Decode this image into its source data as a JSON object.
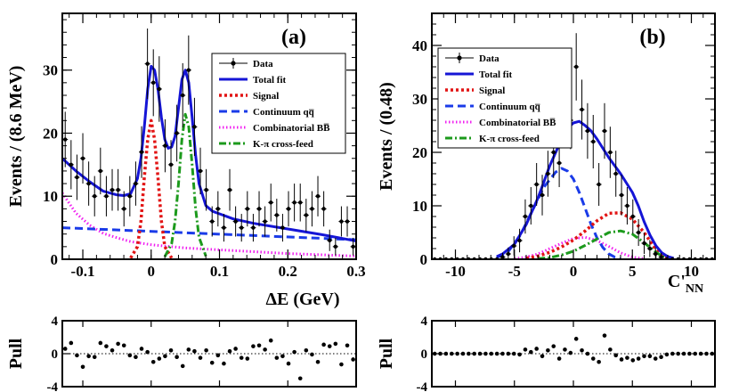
{
  "chart_data": [
    {
      "panel": "(a)",
      "type": "line",
      "xlabel": "ΔE (GeV)",
      "ylabel": "Events / (8.6 MeV)",
      "xlim": [
        -0.13,
        0.3
      ],
      "ylim": [
        0,
        39
      ],
      "xticks": [
        -0.1,
        0,
        0.1,
        0.2,
        0.3
      ],
      "xtick_labels": [
        "-0.1",
        "0",
        "0.1",
        "0.2",
        "0.3"
      ],
      "yticks": [
        0,
        10,
        20,
        30
      ],
      "ytick_labels": [
        "0",
        "10",
        "20",
        "30"
      ],
      "legend_position": "top-right",
      "legend": [
        {
          "label": "Data",
          "style": "marker"
        },
        {
          "label": "Total fit",
          "style": "solid",
          "color": "#1515d6"
        },
        {
          "label": "Signal",
          "style": "dotted",
          "color": "#e21414"
        },
        {
          "label": "Continuum qq̅",
          "style": "dashed",
          "color": "#1a3be8"
        },
        {
          "label": "Combinatorial BB̅",
          "style": "dotted-fine",
          "color": "#f020f0"
        },
        {
          "label": "K-π cross-feed",
          "style": "dash-dot",
          "color": "#1c9a1c"
        }
      ],
      "data": {
        "x": [
          -0.1258,
          -0.1172,
          -0.1086,
          -0.1,
          -0.0914,
          -0.0828,
          -0.0742,
          -0.0656,
          -0.057,
          -0.0484,
          -0.0398,
          -0.0312,
          -0.0226,
          -0.014,
          -0.0054,
          0.0032,
          0.0118,
          0.0204,
          0.029,
          0.0376,
          0.0462,
          0.0548,
          0.0634,
          0.072,
          0.0806,
          0.0892,
          0.0978,
          0.1064,
          0.115,
          0.1236,
          0.1322,
          0.1408,
          0.1494,
          0.158,
          0.1666,
          0.1752,
          0.1838,
          0.1924,
          0.201,
          0.2096,
          0.2182,
          0.2268,
          0.2354,
          0.244,
          0.2526,
          0.2612,
          0.2698,
          0.2784,
          0.287,
          0.2956
        ],
        "y": [
          19,
          15,
          13,
          16,
          12,
          10,
          14,
          10,
          11,
          11,
          8,
          10,
          12,
          17,
          31,
          28,
          27,
          18,
          15,
          20,
          26,
          30,
          21,
          14,
          11,
          6,
          8,
          5,
          11,
          6,
          5,
          8,
          5,
          8,
          6,
          9,
          7,
          5,
          8,
          9,
          9,
          7,
          8,
          10,
          8,
          3,
          2,
          6,
          6,
          2
        ],
        "yerr": [
          4.4,
          3.9,
          3.6,
          4.0,
          3.5,
          3.2,
          3.7,
          3.2,
          3.3,
          3.3,
          2.8,
          3.2,
          3.5,
          4.1,
          5.6,
          5.3,
          5.2,
          4.2,
          3.9,
          4.5,
          5.1,
          5.5,
          4.6,
          3.7,
          3.3,
          2.4,
          2.8,
          2.2,
          3.3,
          2.4,
          2.2,
          2.8,
          2.2,
          2.8,
          2.4,
          3.0,
          2.6,
          2.2,
          2.8,
          3.0,
          3.0,
          2.6,
          2.8,
          3.2,
          2.8,
          1.7,
          1.4,
          2.4,
          2.4,
          1.4
        ]
      },
      "series": [
        {
          "name": "Total fit",
          "x": [
            -0.13,
            -0.11,
            -0.09,
            -0.07,
            -0.05,
            -0.04,
            -0.03,
            -0.02,
            -0.015,
            -0.01,
            -0.005,
            0,
            0.005,
            0.01,
            0.015,
            0.02,
            0.025,
            0.03,
            0.035,
            0.04,
            0.045,
            0.05,
            0.055,
            0.06,
            0.065,
            0.07,
            0.08,
            0.09,
            0.1,
            0.12,
            0.15,
            0.2,
            0.25,
            0.3
          ],
          "y": [
            16,
            14,
            12.3,
            10.8,
            10.2,
            10.1,
            10.4,
            12.8,
            16,
            21,
            27,
            30.6,
            30,
            27,
            22.5,
            19,
            17.6,
            17.8,
            19.5,
            24,
            28.5,
            30,
            28,
            22.5,
            16.5,
            12,
            8.5,
            7.6,
            7.2,
            6.4,
            5.7,
            4.8,
            3.9,
            2.9
          ]
        },
        {
          "name": "Signal",
          "x": [
            -0.03,
            -0.02,
            -0.015,
            -0.01,
            -0.005,
            0,
            0.005,
            0.01,
            0.015,
            0.02,
            0.03
          ],
          "y": [
            0.2,
            2,
            6,
            13,
            19,
            22,
            19,
            13,
            6,
            2,
            0.2
          ]
        },
        {
          "name": "Continuum qq̅",
          "x": [
            -0.13,
            0.3
          ],
          "y": [
            5.0,
            3.1
          ]
        },
        {
          "name": "Combinatorial BB̅",
          "x": [
            -0.13,
            -0.11,
            -0.09,
            -0.07,
            -0.05,
            -0.03,
            0,
            0.05,
            0.1,
            0.15,
            0.2,
            0.25,
            0.3
          ],
          "y": [
            10.5,
            7.3,
            5.4,
            4.1,
            3.4,
            2.8,
            2.3,
            1.8,
            1.5,
            1.2,
            0.9,
            0.7,
            0.5
          ]
        },
        {
          "name": "K-π cross-feed",
          "x": [
            0.02,
            0.03,
            0.035,
            0.04,
            0.045,
            0.05,
            0.055,
            0.06,
            0.065,
            0.07,
            0.08
          ],
          "y": [
            0.4,
            2.5,
            6,
            12,
            19,
            23,
            21,
            15,
            8,
            3.5,
            0.5
          ]
        }
      ],
      "pull": {
        "ylabel": "Pull",
        "ylim": [
          -4,
          4
        ],
        "yticks": [
          4,
          0,
          -4
        ],
        "ytick_labels": [
          "4",
          "0",
          "-4"
        ],
        "x": [
          -0.1258,
          -0.1172,
          -0.1086,
          -0.1,
          -0.0914,
          -0.0828,
          -0.0742,
          -0.0656,
          -0.057,
          -0.0484,
          -0.0398,
          -0.0312,
          -0.0226,
          -0.014,
          -0.0054,
          0.0032,
          0.0118,
          0.0204,
          0.029,
          0.0376,
          0.0462,
          0.0548,
          0.0634,
          0.072,
          0.0806,
          0.0892,
          0.0978,
          0.1064,
          0.115,
          0.1236,
          0.1322,
          0.1408,
          0.1494,
          0.158,
          0.1666,
          0.1752,
          0.1838,
          0.1924,
          0.201,
          0.2096,
          0.2182,
          0.2268,
          0.2354,
          0.244,
          0.2526,
          0.2612,
          0.2698,
          0.2784,
          0.287,
          0.2956
        ],
        "y": [
          0.6,
          1.3,
          -0.2,
          -1.6,
          -0.3,
          -0.4,
          1.3,
          0.9,
          0.4,
          1.2,
          1.0,
          -0.2,
          -0.4,
          0.6,
          0.2,
          -1.0,
          -0.6,
          -0.3,
          0.4,
          -0.4,
          -1.5,
          0.5,
          0.3,
          -0.5,
          0.4,
          -1.1,
          -0.2,
          -1.2,
          0.3,
          0.6,
          -0.5,
          -0.6,
          0.9,
          1.0,
          0.5,
          1.6,
          -0.5,
          -0.3,
          -1.2,
          0.2,
          -3.0,
          0.4,
          -0.1,
          -1.0,
          1.1,
          0.9,
          1.2,
          -1.3,
          1.0,
          -0.7
        ]
      }
    },
    {
      "panel": "(b)",
      "type": "line",
      "xlabel": "C'NN",
      "xlabel_main": "C'",
      "xlabel_sub": "NN",
      "ylabel": "Events / (0.48)",
      "xlim": [
        -12,
        12
      ],
      "ylim": [
        0,
        46
      ],
      "xticks": [
        -10,
        -5,
        0,
        5,
        10
      ],
      "xtick_labels": [
        "-10",
        "-5",
        "0",
        "5",
        "10"
      ],
      "yticks": [
        0,
        10,
        20,
        30,
        40
      ],
      "ytick_labels": [
        "0",
        "10",
        "20",
        "30",
        "40"
      ],
      "legend_position": "top-right",
      "legend": [
        {
          "label": "Data",
          "style": "marker"
        },
        {
          "label": "Total fit",
          "style": "solid",
          "color": "#1515d6"
        },
        {
          "label": "Signal",
          "style": "dotted",
          "color": "#e21414"
        },
        {
          "label": "Continuum qq̅",
          "style": "dashed",
          "color": "#1a3be8"
        },
        {
          "label": "Combinatorial BB̅",
          "style": "dotted-fine",
          "color": "#f020f0"
        },
        {
          "label": "K-π cross-feed",
          "style": "dash-dot",
          "color": "#1c9a1c"
        }
      ],
      "data": {
        "x": [
          -11.76,
          -11.28,
          -10.8,
          -10.32,
          -9.84,
          -9.36,
          -8.88,
          -8.4,
          -7.92,
          -7.44,
          -6.96,
          -6.48,
          -6.0,
          -5.52,
          -5.04,
          -4.56,
          -4.08,
          -3.6,
          -3.12,
          -2.64,
          -2.16,
          -1.68,
          -1.2,
          -0.72,
          -0.24,
          0.24,
          0.72,
          1.2,
          1.68,
          2.16,
          2.64,
          3.12,
          3.6,
          4.08,
          4.56,
          5.04,
          5.52,
          6.0,
          6.48,
          6.96,
          7.44,
          7.92,
          8.4,
          8.88,
          9.36,
          9.84,
          10.32,
          10.8,
          11.28,
          11.76
        ],
        "y": [
          0,
          0,
          0,
          0,
          0,
          0,
          0,
          0,
          0,
          0,
          0,
          0,
          0.4,
          1.0,
          2.5,
          3.5,
          8,
          10,
          14,
          12,
          16,
          20,
          18,
          30,
          26,
          36,
          28,
          24,
          22,
          14,
          24,
          20,
          16,
          12,
          10,
          8,
          5,
          3,
          2,
          1,
          0.4,
          0,
          0,
          0,
          0,
          0,
          0,
          0,
          0,
          0
        ],
        "yerr": [
          0,
          0,
          0,
          0,
          0,
          0,
          0,
          0,
          0,
          0,
          0,
          0,
          0.8,
          1.2,
          1.8,
          2.2,
          3.2,
          3.5,
          4.0,
          3.8,
          4.3,
          4.8,
          4.5,
          5.8,
          5.4,
          6.3,
          5.6,
          5.2,
          5.0,
          4.0,
          5.2,
          4.8,
          4.3,
          3.8,
          3.5,
          3.2,
          2.5,
          2.0,
          1.6,
          1.2,
          0.8,
          0,
          0,
          0,
          0,
          0,
          0,
          0,
          0,
          0
        ]
      },
      "series": [
        {
          "name": "Total fit",
          "x": [
            -6.5,
            -6,
            -5,
            -4,
            -3,
            -2,
            -1,
            -0.5,
            0,
            0.5,
            1,
            1.5,
            2,
            3,
            4,
            5,
            5.5,
            6,
            6.5,
            7,
            7.5,
            8,
            8.5
          ],
          "y": [
            0.5,
            1.0,
            2.8,
            6.5,
            11.5,
            17.5,
            22.5,
            24.5,
            25.5,
            25.8,
            25,
            24,
            22.5,
            19,
            16,
            12.5,
            10,
            7,
            4.5,
            2.5,
            1.2,
            0.5,
            0.2
          ]
        },
        {
          "name": "Signal",
          "x": [
            -4,
            -3,
            -2,
            -1,
            0,
            1,
            2,
            3,
            4,
            5,
            6,
            6.5,
            7,
            7.5,
            8
          ],
          "y": [
            0.2,
            0.6,
            1.3,
            2.3,
            3.6,
            5.3,
            7.2,
            8.6,
            8.7,
            7.5,
            5,
            3.4,
            1.8,
            0.8,
            0.3
          ]
        },
        {
          "name": "Continuum qq̅",
          "x": [
            -6.5,
            -5.5,
            -4.5,
            -3.5,
            -2.5,
            -1.5,
            -1,
            -0.5,
            0,
            0.5,
            1,
            1.5,
            2,
            2.5,
            3,
            3.5,
            4
          ],
          "y": [
            0.3,
            1.5,
            4.5,
            9,
            13.5,
            16.3,
            17,
            16.5,
            15,
            12.5,
            9.5,
            6.5,
            4,
            2.2,
            1.0,
            0.4,
            0.1
          ]
        },
        {
          "name": "Combinatorial BB̅",
          "x": [
            -5,
            -4,
            -3,
            -2,
            -1,
            0,
            1,
            2,
            3,
            4,
            5,
            6
          ],
          "y": [
            0.1,
            0.4,
            1.0,
            2.0,
            3.0,
            3.9,
            4.1,
            3.5,
            2.4,
            1.2,
            0.4,
            0.1
          ]
        },
        {
          "name": "K-π cross-feed",
          "x": [
            -3,
            -2,
            -1,
            0,
            1,
            2,
            3,
            4,
            5,
            6,
            7,
            7.5,
            8
          ],
          "y": [
            0.1,
            0.3,
            0.8,
            1.5,
            2.6,
            3.8,
            5.0,
            5.3,
            4.7,
            3.1,
            1.3,
            0.6,
            0.2
          ]
        }
      ],
      "pull": {
        "ylabel": "Pull",
        "ylim": [
          -4,
          4
        ],
        "yticks": [
          4,
          0,
          -4
        ],
        "ytick_labels": [
          "4",
          "0",
          "-4"
        ],
        "x": [
          -11.76,
          -11.28,
          -10.8,
          -10.32,
          -9.84,
          -9.36,
          -8.88,
          -8.4,
          -7.92,
          -7.44,
          -6.96,
          -6.48,
          -6.0,
          -5.52,
          -5.04,
          -4.56,
          -4.08,
          -3.6,
          -3.12,
          -2.64,
          -2.16,
          -1.68,
          -1.2,
          -0.72,
          -0.24,
          0.24,
          0.72,
          1.2,
          1.68,
          2.16,
          2.64,
          3.12,
          3.6,
          4.08,
          4.56,
          5.04,
          5.52,
          6.0,
          6.48,
          6.96,
          7.44,
          7.92,
          8.4,
          8.88,
          9.36,
          9.84,
          10.32,
          10.8,
          11.28,
          11.76
        ],
        "y": [
          0,
          0,
          0,
          0,
          0,
          0,
          0,
          0,
          0,
          0,
          0,
          0,
          0,
          0,
          0,
          -0.1,
          0.5,
          0.2,
          0.6,
          -0.3,
          0.4,
          0.9,
          -0.6,
          0.5,
          0.1,
          1.8,
          0.4,
          0.0,
          -0.6,
          -1.0,
          2.2,
          0.5,
          -0.2,
          -0.7,
          -0.5,
          -0.8,
          -0.6,
          -0.3,
          -0.3,
          -0.6,
          -0.4,
          -0.1,
          0,
          0,
          0,
          0,
          0,
          0,
          0,
          0
        ]
      }
    }
  ]
}
